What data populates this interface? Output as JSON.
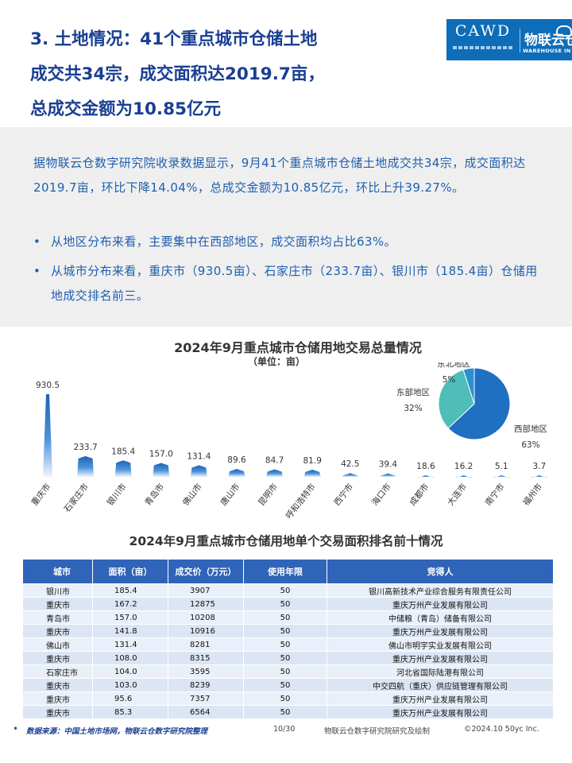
{
  "heading": {
    "line1": "3. 土地情况：41个重点城市仓储土地",
    "line2": "成交共34宗，成交面积达2019.7亩，",
    "line3": "总成交金额为10.85亿元"
  },
  "logo": {
    "main": "CAWD",
    "cn": "物联云仓",
    "en": "WAREHOUSE IN CLOUD"
  },
  "summary": {
    "paragraph": "据物联云仓数字研究院收录数据显示，9月41个重点城市仓储土地成交共34宗，成交面积达2019.7亩，环比下降14.04%，总成交金额为10.85亿元，环比上升39.27%。",
    "bullets": [
      "从地区分布来看，主要集中在西部地区，成交面积均占比63%。",
      "从城市分布来看，重庆市（930.5亩）、石家庄市（233.7亩）、银川市（185.4亩）仓储用地成交排名前三。"
    ]
  },
  "chart": {
    "title": "2024年9月重点城市仓储用地交易总量情况",
    "unit": "（单位：亩）"
  },
  "chart_data": [
    {
      "type": "bar",
      "categories": [
        "重庆市",
        "石家庄市",
        "银川市",
        "青岛市",
        "佛山市",
        "唐山市",
        "昆明市",
        "呼和浩特市",
        "西宁市",
        "海口市",
        "成都市",
        "大连市",
        "南宁市",
        "福州市"
      ],
      "values": [
        930.5,
        233.7,
        185.4,
        157.0,
        131.4,
        89.6,
        84.7,
        81.9,
        42.5,
        39.4,
        18.6,
        16.2,
        5.1,
        3.7
      ],
      "value_labels": [
        "930.5",
        "233.7",
        "185.4",
        "157.0",
        "131.4",
        "89.6",
        "84.7",
        "81.9",
        "42.5",
        "39.4",
        "18.6",
        "16.2",
        "5.1",
        "3.7"
      ],
      "title": "2024年9月重点城市仓储用地交易总量情况",
      "ylabel": "（单位：亩）",
      "ylim": [
        0,
        930.5
      ],
      "grid": false,
      "color": "#1f6fc2"
    },
    {
      "type": "pie",
      "categories": [
        "西部地区",
        "东部地区",
        "东北地区"
      ],
      "values": [
        63,
        32,
        5
      ],
      "value_labels": [
        "63%",
        "32%",
        "5%"
      ],
      "colors": [
        "#1f6fc2",
        "#4fbdb8",
        "#2b8fcf"
      ]
    }
  ],
  "table": {
    "title": "2024年9月重点城市仓储用地单个交易面积排名前十情况",
    "headers": [
      "城市",
      "面积（亩）",
      "成交价（万元）",
      "使用年限",
      "竞得人"
    ],
    "rows": [
      [
        "银川市",
        "185.4",
        "3907",
        "50",
        "银川高新技术产业综合服务有限责任公司"
      ],
      [
        "重庆市",
        "167.2",
        "12875",
        "50",
        "重庆万州产业发展有限公司"
      ],
      [
        "青岛市",
        "157.0",
        "10208",
        "50",
        "中储粮（青岛）储备有限公司"
      ],
      [
        "重庆市",
        "141.8",
        "10916",
        "50",
        "重庆万州产业发展有限公司"
      ],
      [
        "佛山市",
        "131.4",
        "8281",
        "50",
        "佛山市明宇实业发展有限公司"
      ],
      [
        "重庆市",
        "108.0",
        "8315",
        "50",
        "重庆万州产业发展有限公司"
      ],
      [
        "石家庄市",
        "104.0",
        "3595",
        "50",
        "河北省国际陆港有限公司"
      ],
      [
        "重庆市",
        "103.0",
        "8239",
        "50",
        "中交四航（重庆）供应链管理有限公司"
      ],
      [
        "重庆市",
        "95.6",
        "7357",
        "50",
        "重庆万州产业发展有限公司"
      ],
      [
        "重庆市",
        "85.3",
        "6564",
        "50",
        "重庆万州产业发展有限公司"
      ]
    ]
  },
  "footer": {
    "bullet": "•",
    "source": "数据来源：中国土地市场网，物联云仓数字研究院整理",
    "page": "10/30",
    "credit": "物联云仓数字研究院研究及绘制",
    "copyright": "©2024.10 50yc Inc."
  }
}
